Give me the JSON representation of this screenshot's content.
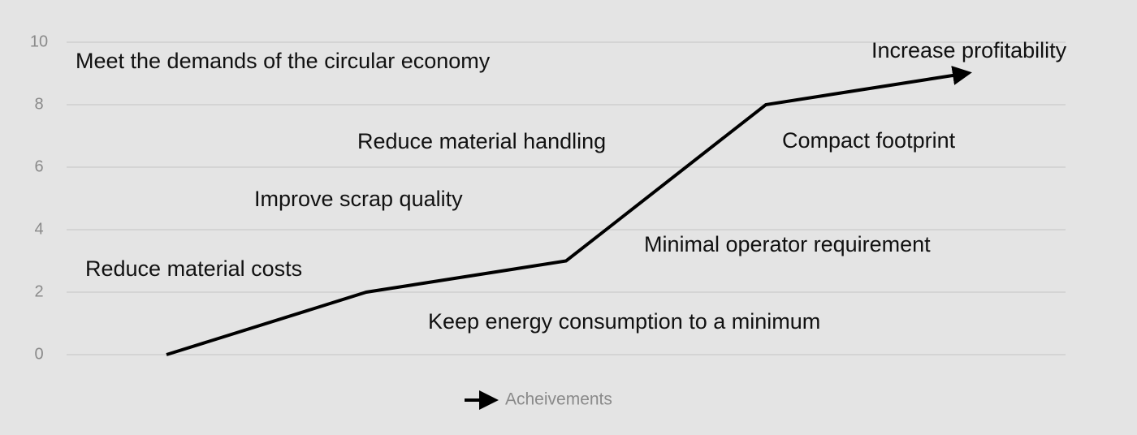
{
  "chart_data": {
    "type": "line",
    "categories": [
      null,
      null,
      null,
      null,
      null
    ],
    "series": [
      {
        "name": "Acheivements",
        "color": "#000000",
        "values": [
          0,
          2,
          3,
          8,
          9
        ]
      }
    ],
    "ylim": [
      0,
      10
    ],
    "yticks": [
      0,
      2,
      4,
      6,
      8,
      10
    ],
    "grid": true,
    "end_arrow": true,
    "legend": "bottom",
    "annotations": [
      "Meet the demands of the circular economy",
      "Increase profitability",
      "Reduce material handling",
      "Compact footprint",
      "Improve scrap quality",
      "Minimal operator requirement",
      "Reduce material costs",
      "Keep energy consumption to a minimum"
    ]
  }
}
